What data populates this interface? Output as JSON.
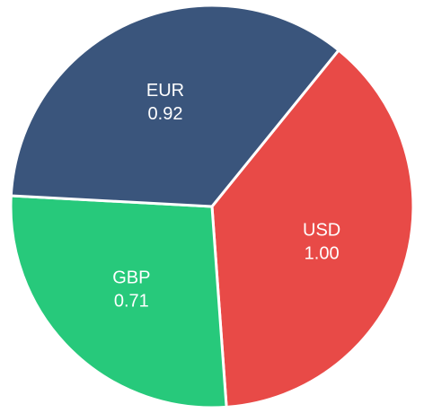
{
  "chart_data": {
    "type": "pie",
    "categories": [
      "USD",
      "GBP",
      "EUR"
    ],
    "values": [
      1.0,
      0.71,
      0.92
    ],
    "value_labels": [
      "1.00",
      "0.71",
      "0.92"
    ],
    "colors": [
      "#e84a47",
      "#27c97b",
      "#3a557c"
    ],
    "start_angle_deg": 39,
    "direction": "clockwise",
    "legend": "none"
  }
}
